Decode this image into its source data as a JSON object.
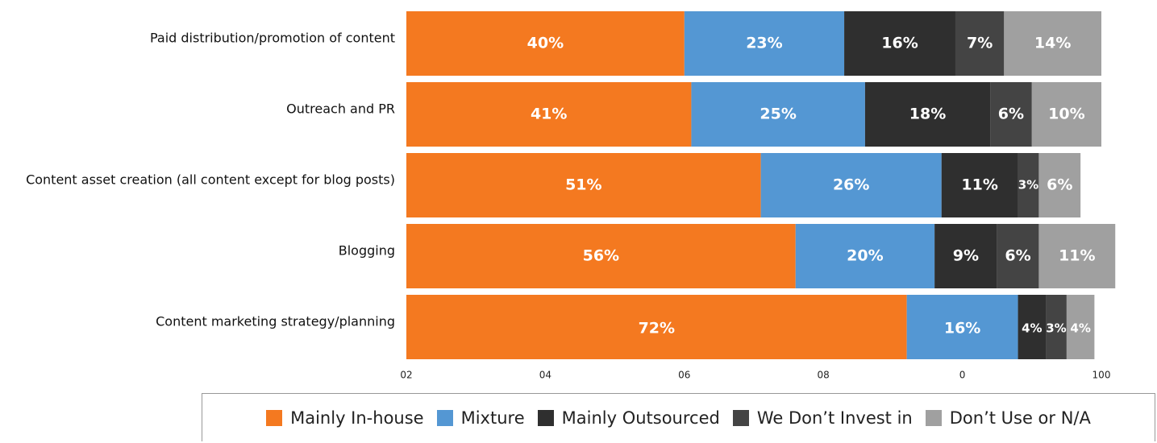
{
  "chart_data": {
    "type": "stacked-barh",
    "categories": [
      "Paid distribution/promotion of content",
      "Outreach and PR",
      "Content asset creation (all content except for blog posts)",
      "Blogging",
      "Content marketing strategy/planning"
    ],
    "series": [
      {
        "name": "Mainly In-house",
        "color": "#f47920",
        "values": [
          40,
          41,
          51,
          56,
          72
        ],
        "value_labels": [
          "40%",
          "41%",
          "51%",
          "56%",
          "72%"
        ]
      },
      {
        "name": "Mixture",
        "color": "#5497d3",
        "values": [
          23,
          25,
          26,
          20,
          16
        ],
        "value_labels": [
          "23%",
          "25%",
          "26%",
          "20%",
          "16%"
        ]
      },
      {
        "name": "Mainly Outsourced",
        "color": "#2f2f2f",
        "values": [
          16,
          18,
          11,
          9,
          4
        ],
        "value_labels": [
          "16%",
          "18%",
          "11%",
          "9%",
          "4%"
        ]
      },
      {
        "name": "We Don’t Invest in",
        "color": "#444444",
        "values": [
          7,
          6,
          3,
          6,
          3
        ],
        "value_labels": [
          "7%",
          "6%",
          "3%",
          "6%",
          "3%"
        ]
      },
      {
        "name": "Don’t Use or N/A",
        "color": "#a0a0a0",
        "values": [
          14,
          10,
          6,
          11,
          4
        ],
        "value_labels": [
          "14%",
          "10%",
          "6%",
          "11%",
          "4%"
        ]
      }
    ],
    "xlim": [
      0,
      100
    ],
    "xticks": [
      {
        "value": 0,
        "label": "02"
      },
      {
        "value": 20,
        "label": "04"
      },
      {
        "value": 40,
        "label": "06"
      },
      {
        "value": 60,
        "label": "08"
      },
      {
        "value": 80,
        "label": "0"
      },
      100
    ],
    "legend": "bottom"
  }
}
